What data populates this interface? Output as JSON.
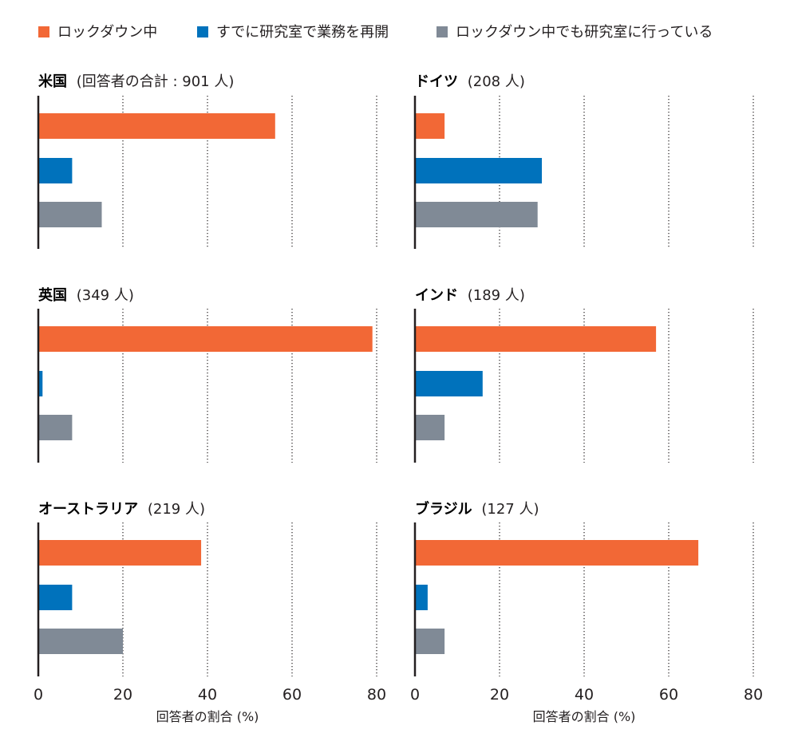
{
  "colors": {
    "lockdown": "#f26836",
    "reopened": "#0072bc",
    "working_during_lockdown": "#808a96",
    "axis": "#231f20",
    "grid": "#231f20"
  },
  "legend": {
    "items": [
      {
        "label": "ロックダウン中",
        "color": "#f26836"
      },
      {
        "label": "すでに研究室で業務を再開",
        "color": "#0072bc"
      },
      {
        "label": "ロックダウン中でも研究室に行っている",
        "color": "#808a96"
      }
    ]
  },
  "chart_data": [
    {
      "type": "bar",
      "orientation": "horizontal",
      "title_bold": "米国",
      "title_rest": "(回答者の合計 : 901 人)",
      "categories": [
        "ロックダウン中",
        "すでに研究室で業務を再開",
        "ロックダウン中でも研究室に行っている"
      ],
      "values": [
        56,
        8,
        15
      ],
      "xlim": [
        0,
        85
      ],
      "xticks": [
        0,
        20,
        40,
        60,
        80
      ],
      "xlabel": "",
      "grid": "vertical dotted"
    },
    {
      "type": "bar",
      "orientation": "horizontal",
      "title_bold": "ドイツ",
      "title_rest": "(208 人)",
      "categories": [
        "ロックダウン中",
        "すでに研究室で業務を再開",
        "ロックダウン中でも研究室に行っている"
      ],
      "values": [
        7,
        30,
        29
      ],
      "xlim": [
        0,
        85
      ],
      "xticks": [
        0,
        20,
        40,
        60,
        80
      ],
      "xlabel": "",
      "grid": "vertical dotted"
    },
    {
      "type": "bar",
      "orientation": "horizontal",
      "title_bold": "英国",
      "title_rest": "(349 人)",
      "categories": [
        "ロックダウン中",
        "すでに研究室で業務を再開",
        "ロックダウン中でも研究室に行っている"
      ],
      "values": [
        79,
        1,
        8
      ],
      "xlim": [
        0,
        85
      ],
      "xticks": [
        0,
        20,
        40,
        60,
        80
      ],
      "xlabel": "",
      "grid": "vertical dotted"
    },
    {
      "type": "bar",
      "orientation": "horizontal",
      "title_bold": "インド",
      "title_rest": "(189 人)",
      "categories": [
        "ロックダウン中",
        "すでに研究室で業務を再開",
        "ロックダウン中でも研究室に行っている"
      ],
      "values": [
        57,
        16,
        7
      ],
      "xlim": [
        0,
        85
      ],
      "xticks": [
        0,
        20,
        40,
        60,
        80
      ],
      "xlabel": "",
      "grid": "vertical dotted"
    },
    {
      "type": "bar",
      "orientation": "horizontal",
      "title_bold": "オーストラリア",
      "title_rest": "(219 人)",
      "categories": [
        "ロックダウン中",
        "すでに研究室で業務を再開",
        "ロックダウン中でも研究室に行っている"
      ],
      "values": [
        38.5,
        8,
        20
      ],
      "xlim": [
        0,
        85
      ],
      "xticks": [
        0,
        20,
        40,
        60,
        80
      ],
      "xlabel": "回答者の割合 (%)",
      "grid": "vertical dotted"
    },
    {
      "type": "bar",
      "orientation": "horizontal",
      "title_bold": "ブラジル",
      "title_rest": "(127 人)",
      "categories": [
        "ロックダウン中",
        "すでに研究室で業務を再開",
        "ロックダウン中でも研究室に行っている"
      ],
      "values": [
        67,
        3,
        7
      ],
      "xlim": [
        0,
        85
      ],
      "xticks": [
        0,
        20,
        40,
        60,
        80
      ],
      "xlabel": "回答者の割合 (%)",
      "grid": "vertical dotted"
    }
  ]
}
